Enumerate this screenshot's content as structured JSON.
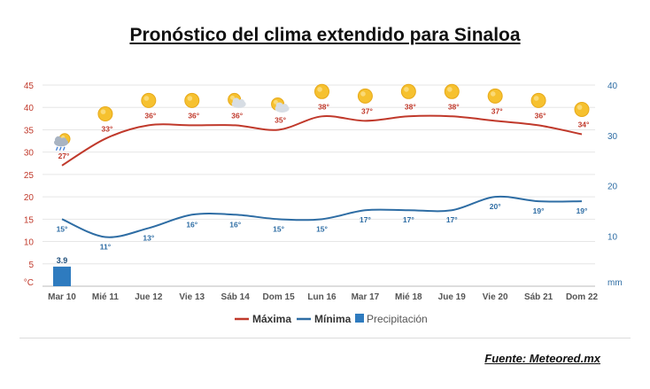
{
  "title": "Pronóstico del clima extendido para Sinaloa",
  "source": "Fuente: Meteored.mx",
  "colors": {
    "max": "#c0392b",
    "min": "#2e6da4",
    "precip": "#2e7bbf",
    "left_axis": "#c0392b",
    "right_axis": "#2e6da4",
    "grid": "#e6e6e6"
  },
  "chart_data": {
    "type": "line",
    "categories": [
      "Mar 10",
      "Mié 11",
      "Jue 12",
      "Vie 13",
      "Sáb 14",
      "Dom 15",
      "Lun 16",
      "Mar 17",
      "Mié 18",
      "Jue 19",
      "Vie 20",
      "Sáb 21",
      "Dom 22"
    ],
    "series": [
      {
        "name": "Máxima",
        "values": [
          27,
          33,
          36,
          36,
          36,
          35,
          38,
          37,
          38,
          38,
          37,
          36,
          34
        ],
        "labels": [
          "27°",
          "33°",
          "36°",
          "36°",
          "36°",
          "35°",
          "38°",
          "37°",
          "38°",
          "38°",
          "37°",
          "36°",
          "34°"
        ]
      },
      {
        "name": "Mínima",
        "values": [
          15,
          11,
          13,
          16,
          16,
          15,
          15,
          17,
          17,
          17,
          20,
          19,
          19
        ],
        "labels": [
          "15°",
          "11°",
          "13°",
          "16°",
          "16°",
          "15°",
          "15°",
          "17°",
          "17°",
          "17°",
          "20°",
          "19°",
          "19°"
        ]
      }
    ],
    "precipitation": {
      "name": "Precipitación",
      "values": [
        3.9,
        0,
        0,
        0,
        0,
        0,
        0,
        0,
        0,
        0,
        0,
        0,
        0
      ],
      "labels": [
        "3.9"
      ]
    },
    "left_axis": {
      "ticks": [
        "45",
        "40",
        "35",
        "30",
        "25",
        "20",
        "15",
        "10",
        "5"
      ],
      "unit": "°C",
      "ylim": [
        0,
        45
      ]
    },
    "right_axis": {
      "ticks": [
        "40",
        "30",
        "20",
        "10"
      ],
      "unit": "mm",
      "ylim": [
        0,
        40
      ]
    },
    "icons": [
      "rain-sun-icon",
      "sun-icon",
      "sun-icon",
      "sun-icon",
      "partly-cloudy-icon",
      "partly-cloudy-icon",
      "sun-icon",
      "sun-icon",
      "sun-icon",
      "sun-icon",
      "sun-icon",
      "sun-icon",
      "sun-icon"
    ],
    "legend": {
      "position": "bottom",
      "items": [
        "Máxima",
        "Mínima",
        "Precipitación"
      ]
    }
  }
}
